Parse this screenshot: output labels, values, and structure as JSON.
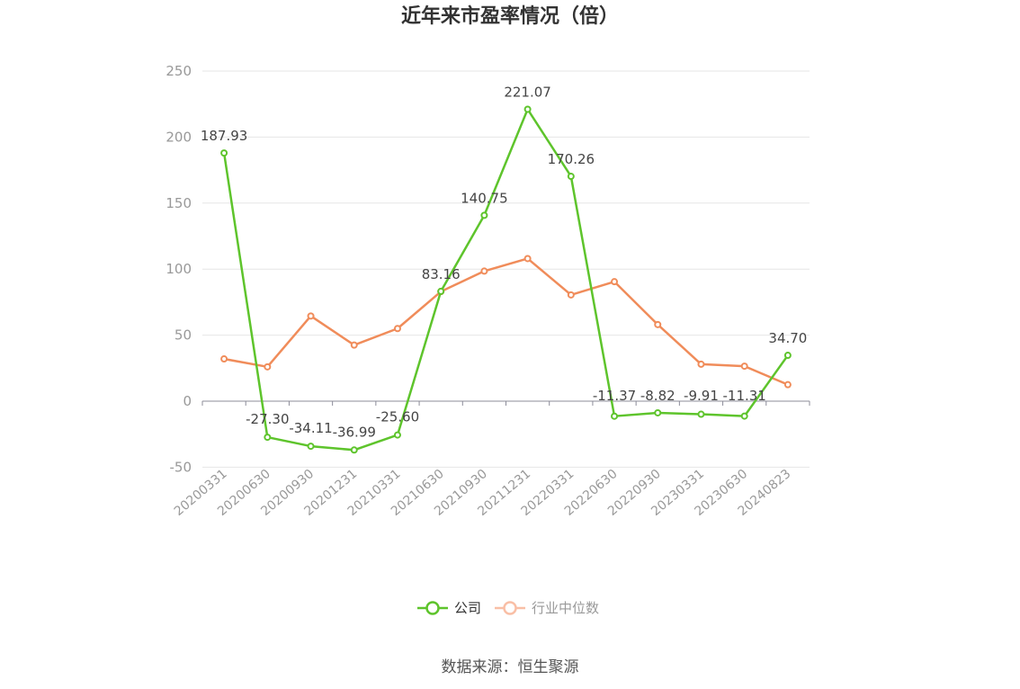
{
  "chart_data": {
    "type": "line",
    "title": "近年来市盈率情况（倍）",
    "categories": [
      "20200331",
      "20200630",
      "20200930",
      "20201231",
      "20210331",
      "20210630",
      "20210930",
      "20211231",
      "20220331",
      "20220630",
      "20220930",
      "20230331",
      "20230630",
      "20240823"
    ],
    "series": [
      {
        "name": "公司",
        "color": "#5ec42c",
        "values": [
          187.93,
          -27.3,
          -34.11,
          -36.99,
          -25.6,
          83.16,
          140.75,
          221.07,
          170.26,
          -11.37,
          -8.82,
          -9.91,
          -11.31,
          34.7
        ],
        "labels": [
          "187.93",
          "-27.30",
          "-34.11",
          "-36.99",
          "-25.60",
          "83.16",
          "140.75",
          "221.07",
          "170.26",
          "-11.37",
          "-8.82",
          "-9.91",
          "-11.31",
          "34.70"
        ]
      },
      {
        "name": "行业中位数",
        "color": "#f08c5a",
        "legend_color": "#f9bfa6",
        "values": [
          32,
          26,
          64.5,
          42.5,
          55,
          83,
          98.5,
          108,
          80.5,
          90.5,
          58,
          28,
          26.5,
          12.5
        ]
      }
    ],
    "ylim": [
      -50,
      250
    ],
    "yticks": [
      -50,
      0,
      50,
      100,
      150,
      200,
      250
    ],
    "grid": true,
    "legend": "bottom-center"
  },
  "source": "数据来源：恒生聚源"
}
